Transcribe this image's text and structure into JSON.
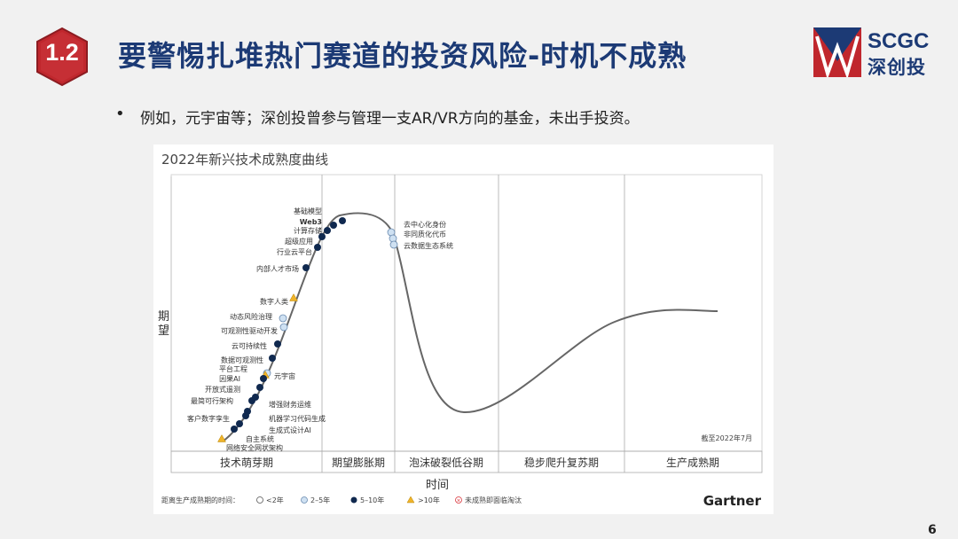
{
  "badge": "1.2",
  "title": "要警惕扎堆热门赛道的投资风险-时机不成熟",
  "logo": {
    "en": "SCGC",
    "cn": "深创投"
  },
  "bullet": "例如，元宇宙等；深创投曾参与管理一支AR/VR方向的基金，未出手投资。",
  "page_number": "6",
  "colors": {
    "title": "#1c3a75",
    "badge": "#c0272d",
    "dot_dark": "#10294f",
    "dot_light": "#cfe1f2",
    "triangle": "#f0b429",
    "eliminated": "#d9343b"
  },
  "chart_data": {
    "type": "hype-cycle",
    "title": "2022年新兴技术成熟度曲线",
    "ylabel": "期望",
    "xlabel": "时间",
    "phases": [
      "技术萌芽期",
      "期望膨胀期",
      "泡沫破裂低谷期",
      "稳步爬升复苏期",
      "生产成熟期"
    ],
    "note": "截至2022年7月",
    "source": "Gartner",
    "legend_title": "距离生产成熟期的时间：",
    "legend": [
      {
        "label": "<2年",
        "icon": "white-circle"
      },
      {
        "label": "2–5年",
        "icon": "light-circle"
      },
      {
        "label": "5–10年",
        "icon": "dark-circle"
      },
      {
        "label": ">10年",
        "icon": "triangle"
      },
      {
        "label": "未成熟即面临淘汰",
        "icon": "x-circle"
      }
    ],
    "technologies": [
      {
        "label": "基础模型",
        "marker": "dark-circle"
      },
      {
        "label": "Web3",
        "marker": "dark-circle"
      },
      {
        "label": "计算存储",
        "marker": "dark-circle"
      },
      {
        "label": "超级应用",
        "marker": "dark-circle"
      },
      {
        "label": "行业云平台",
        "marker": "dark-circle"
      },
      {
        "label": "内部人才市场",
        "marker": "dark-circle"
      },
      {
        "label": "数字人类",
        "marker": "triangle"
      },
      {
        "label": "动态风险治理",
        "marker": "light-circle"
      },
      {
        "label": "可观测性驱动开发",
        "marker": "light-circle"
      },
      {
        "label": "云可持续性",
        "marker": "dark-circle"
      },
      {
        "label": "数据可观测性",
        "marker": "dark-circle"
      },
      {
        "label": "平台工程",
        "marker": "light-circle"
      },
      {
        "label": "元宇宙",
        "marker": "triangle"
      },
      {
        "label": "因果AI",
        "marker": "dark-circle"
      },
      {
        "label": "开放式遥测",
        "marker": "dark-circle"
      },
      {
        "label": "增强财务运维",
        "marker": "dark-circle"
      },
      {
        "label": "最简可行架构",
        "marker": "dark-circle"
      },
      {
        "label": "机器学习代码生成",
        "marker": "dark-circle"
      },
      {
        "label": "客户数字孪生",
        "marker": "dark-circle"
      },
      {
        "label": "生成式设计AI",
        "marker": "dark-circle"
      },
      {
        "label": "自主系统",
        "marker": "dark-circle"
      },
      {
        "label": "网络安全网状架构",
        "marker": "triangle"
      },
      {
        "label": "去中心化身份",
        "marker": "light-circle"
      },
      {
        "label": "非同质化代币",
        "marker": "light-circle"
      },
      {
        "label": "云数据生态系统",
        "marker": "light-circle"
      }
    ]
  }
}
